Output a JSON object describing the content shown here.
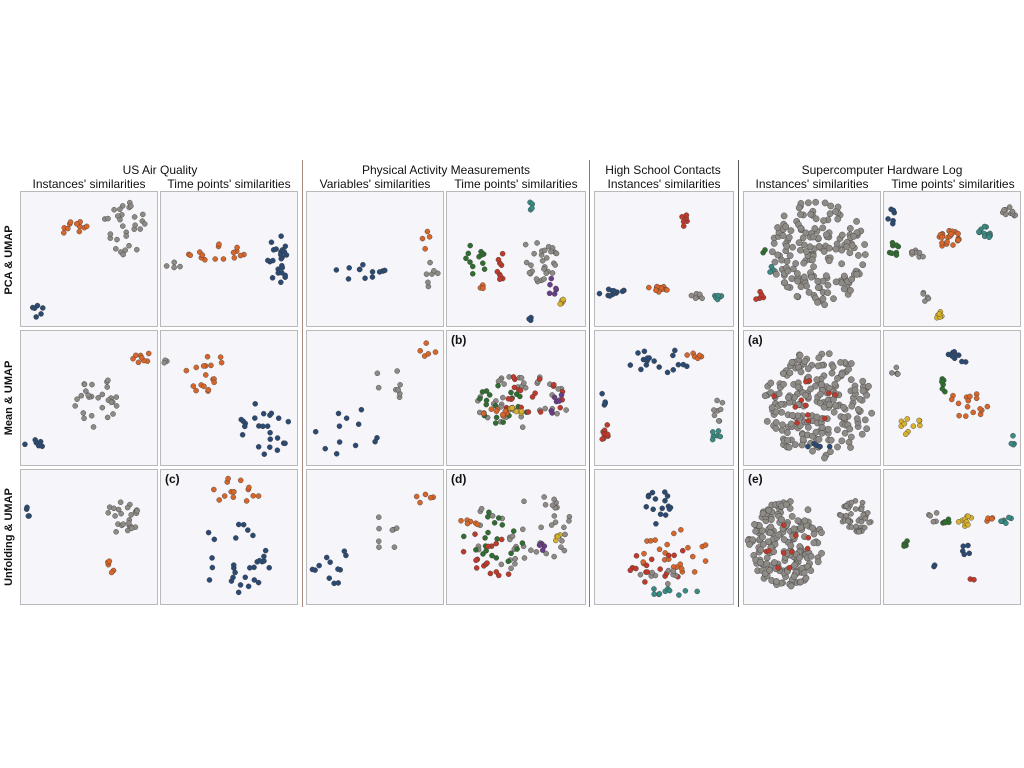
{
  "figure": {
    "row_labels": [
      "PCA & UMAP",
      "Mean & UMAP",
      "Unfolding & UMAP"
    ],
    "groups": [
      {
        "id": "air",
        "title": "US Air Quality",
        "columns": [
          "Instances' similarities",
          "Time points' similarities"
        ]
      },
      {
        "id": "phys",
        "title": "Physical Activity Measurements",
        "columns": [
          "Variables' similarities",
          "Time points' similarities"
        ]
      },
      {
        "id": "school",
        "title": "High School Contacts",
        "columns": [
          "Instances' similarities"
        ]
      },
      {
        "id": "super",
        "title": "Supercomputer Hardware Log",
        "columns": [
          "Instances' similarities",
          "Time points' similarities"
        ]
      }
    ],
    "panel_labels": {
      "r1c3": "(b)",
      "r1c5": "(a)",
      "r2c1": "(c)",
      "r2c3": "(d)",
      "r2c5": "(e)"
    }
  },
  "colors": {
    "blue": "#2b4a73",
    "orange": "#d8662a",
    "gray": "#8e8a86",
    "red": "#c0392b",
    "green": "#2f6e2f",
    "teal": "#3a8a84",
    "yellow": "#d8b22a",
    "purple": "#6a3d8a",
    "panel_bg": "#f6f6fa",
    "separator": "#a98a7e"
  },
  "chart_data": {
    "type": "scatter",
    "description_units": "normalized projection coordinates 0-1 (x right, y down)",
    "panels": [
      {
        "id": "r0c0",
        "clusters": [
          {
            "color": "blue",
            "cx": 0.12,
            "cy": 0.89,
            "rx": 0.05,
            "ry": 0.05,
            "n": 6
          },
          {
            "color": "orange",
            "cx": 0.38,
            "cy": 0.27,
            "rx": 0.14,
            "ry": 0.06,
            "n": 11
          },
          {
            "color": "gray",
            "cx": 0.76,
            "cy": 0.27,
            "rx": 0.17,
            "ry": 0.2,
            "n": 30
          }
        ]
      },
      {
        "id": "r0c1",
        "clusters": [
          {
            "color": "gray",
            "cx": 0.1,
            "cy": 0.55,
            "rx": 0.06,
            "ry": 0.03,
            "n": 4
          },
          {
            "color": "orange",
            "cx": 0.38,
            "cy": 0.45,
            "rx": 0.24,
            "ry": 0.07,
            "n": 16
          },
          {
            "color": "blue",
            "cx": 0.87,
            "cy": 0.48,
            "rx": 0.09,
            "ry": 0.2,
            "n": 24
          }
        ]
      },
      {
        "id": "r0c2",
        "clusters": [
          {
            "color": "blue",
            "cx": 0.35,
            "cy": 0.59,
            "rx": 0.28,
            "ry": 0.06,
            "n": 12
          },
          {
            "color": "orange",
            "cx": 0.88,
            "cy": 0.35,
            "rx": 0.04,
            "ry": 0.08,
            "n": 4
          },
          {
            "color": "gray",
            "cx": 0.92,
            "cy": 0.6,
            "rx": 0.05,
            "ry": 0.14,
            "n": 7
          }
        ]
      },
      {
        "id": "r0c3",
        "clusters": [
          {
            "color": "green",
            "cx": 0.2,
            "cy": 0.5,
            "rx": 0.09,
            "ry": 0.15,
            "n": 12
          },
          {
            "color": "red",
            "cx": 0.4,
            "cy": 0.55,
            "rx": 0.04,
            "ry": 0.12,
            "n": 9
          },
          {
            "color": "gray",
            "cx": 0.67,
            "cy": 0.5,
            "rx": 0.13,
            "ry": 0.17,
            "n": 30
          },
          {
            "color": "purple",
            "cx": 0.77,
            "cy": 0.7,
            "rx": 0.04,
            "ry": 0.08,
            "n": 6
          },
          {
            "color": "yellow",
            "cx": 0.82,
            "cy": 0.83,
            "rx": 0.03,
            "ry": 0.04,
            "n": 5
          },
          {
            "color": "teal",
            "cx": 0.62,
            "cy": 0.1,
            "rx": 0.02,
            "ry": 0.05,
            "n": 4
          },
          {
            "color": "orange",
            "cx": 0.25,
            "cy": 0.72,
            "rx": 0.03,
            "ry": 0.04,
            "n": 4
          },
          {
            "color": "blue",
            "cx": 0.61,
            "cy": 0.93,
            "rx": 0.02,
            "ry": 0.03,
            "n": 3
          }
        ]
      },
      {
        "id": "r0c4",
        "clusters": [
          {
            "color": "blue",
            "cx": 0.15,
            "cy": 0.75,
            "rx": 0.13,
            "ry": 0.03,
            "n": 12
          },
          {
            "color": "orange",
            "cx": 0.46,
            "cy": 0.72,
            "rx": 0.08,
            "ry": 0.03,
            "n": 12
          },
          {
            "color": "gray",
            "cx": 0.72,
            "cy": 0.78,
            "rx": 0.07,
            "ry": 0.03,
            "n": 8
          },
          {
            "color": "teal",
            "cx": 0.9,
            "cy": 0.78,
            "rx": 0.05,
            "ry": 0.03,
            "n": 6
          },
          {
            "color": "red",
            "cx": 0.65,
            "cy": 0.2,
            "rx": 0.02,
            "ry": 0.07,
            "n": 6
          }
        ]
      },
      {
        "id": "r0c5",
        "clusters": [
          {
            "color": "gray",
            "cx": 0.55,
            "cy": 0.45,
            "rx": 0.35,
            "ry": 0.4,
            "n": 180
          },
          {
            "color": "green",
            "cx": 0.15,
            "cy": 0.45,
            "rx": 0.02,
            "ry": 0.02,
            "n": 2
          },
          {
            "color": "teal",
            "cx": 0.2,
            "cy": 0.58,
            "rx": 0.03,
            "ry": 0.03,
            "n": 3
          },
          {
            "color": "red",
            "cx": 0.12,
            "cy": 0.78,
            "rx": 0.05,
            "ry": 0.04,
            "n": 5
          }
        ]
      },
      {
        "id": "r0c6",
        "clusters": [
          {
            "color": "blue",
            "cx": 0.06,
            "cy": 0.18,
            "rx": 0.04,
            "ry": 0.06,
            "n": 6
          },
          {
            "color": "green",
            "cx": 0.08,
            "cy": 0.42,
            "rx": 0.05,
            "ry": 0.06,
            "n": 8
          },
          {
            "color": "gray",
            "cx": 0.25,
            "cy": 0.45,
            "rx": 0.05,
            "ry": 0.05,
            "n": 8
          },
          {
            "color": "orange",
            "cx": 0.47,
            "cy": 0.35,
            "rx": 0.09,
            "ry": 0.07,
            "n": 25
          },
          {
            "color": "teal",
            "cx": 0.75,
            "cy": 0.3,
            "rx": 0.07,
            "ry": 0.05,
            "n": 12
          },
          {
            "color": "gray",
            "cx": 0.3,
            "cy": 0.78,
            "rx": 0.03,
            "ry": 0.04,
            "n": 5
          },
          {
            "color": "yellow",
            "cx": 0.4,
            "cy": 0.92,
            "rx": 0.03,
            "ry": 0.03,
            "n": 6
          },
          {
            "color": "gray",
            "cx": 0.92,
            "cy": 0.15,
            "rx": 0.05,
            "ry": 0.06,
            "n": 10
          }
        ]
      },
      {
        "id": "r1c0",
        "clusters": [
          {
            "color": "blue",
            "cx": 0.1,
            "cy": 0.84,
            "rx": 0.08,
            "ry": 0.03,
            "n": 6
          },
          {
            "color": "gray",
            "cx": 0.55,
            "cy": 0.5,
            "rx": 0.18,
            "ry": 0.22,
            "n": 28
          },
          {
            "color": "orange",
            "cx": 0.9,
            "cy": 0.21,
            "rx": 0.08,
            "ry": 0.05,
            "n": 8
          }
        ]
      },
      {
        "id": "r1c1",
        "clusters": [
          {
            "color": "gray",
            "cx": 0.05,
            "cy": 0.24,
            "rx": 0.03,
            "ry": 0.03,
            "n": 3
          },
          {
            "color": "orange",
            "cx": 0.35,
            "cy": 0.32,
            "rx": 0.18,
            "ry": 0.15,
            "n": 18
          },
          {
            "color": "blue",
            "cx": 0.78,
            "cy": 0.72,
            "rx": 0.2,
            "ry": 0.2,
            "n": 24
          }
        ]
      },
      {
        "id": "r1c2",
        "clusters": [
          {
            "color": "blue",
            "cx": 0.3,
            "cy": 0.75,
            "rx": 0.26,
            "ry": 0.18,
            "n": 12
          },
          {
            "color": "gray",
            "cx": 0.62,
            "cy": 0.42,
            "rx": 0.14,
            "ry": 0.2,
            "n": 8
          },
          {
            "color": "orange",
            "cx": 0.88,
            "cy": 0.14,
            "rx": 0.07,
            "ry": 0.06,
            "n": 5
          }
        ]
      },
      {
        "id": "r1c3",
        "clusters": [
          {
            "color": "gray",
            "cx": 0.55,
            "cy": 0.52,
            "rx": 0.35,
            "ry": 0.2,
            "n": 40
          },
          {
            "color": "green",
            "cx": 0.4,
            "cy": 0.55,
            "rx": 0.2,
            "ry": 0.15,
            "n": 20
          },
          {
            "color": "red",
            "cx": 0.6,
            "cy": 0.5,
            "rx": 0.25,
            "ry": 0.18,
            "n": 20
          },
          {
            "color": "orange",
            "cx": 0.35,
            "cy": 0.62,
            "rx": 0.1,
            "ry": 0.05,
            "n": 8
          },
          {
            "color": "purple",
            "cx": 0.8,
            "cy": 0.55,
            "rx": 0.05,
            "ry": 0.1,
            "n": 6
          },
          {
            "color": "yellow",
            "cx": 0.5,
            "cy": 0.6,
            "rx": 0.05,
            "ry": 0.04,
            "n": 5
          }
        ]
      },
      {
        "id": "r1c4",
        "clusters": [
          {
            "color": "blue",
            "cx": 0.45,
            "cy": 0.22,
            "rx": 0.25,
            "ry": 0.1,
            "n": 18
          },
          {
            "color": "orange",
            "cx": 0.72,
            "cy": 0.18,
            "rx": 0.06,
            "ry": 0.04,
            "n": 6
          },
          {
            "color": "blue",
            "cx": 0.06,
            "cy": 0.5,
            "rx": 0.03,
            "ry": 0.06,
            "n": 4
          },
          {
            "color": "red",
            "cx": 0.08,
            "cy": 0.75,
            "rx": 0.05,
            "ry": 0.07,
            "n": 10
          },
          {
            "color": "gray",
            "cx": 0.9,
            "cy": 0.6,
            "rx": 0.04,
            "ry": 0.1,
            "n": 8
          },
          {
            "color": "teal",
            "cx": 0.88,
            "cy": 0.78,
            "rx": 0.04,
            "ry": 0.06,
            "n": 6
          }
        ]
      },
      {
        "id": "r1c5",
        "clusters": [
          {
            "color": "gray",
            "cx": 0.55,
            "cy": 0.55,
            "rx": 0.4,
            "ry": 0.4,
            "n": 220
          },
          {
            "color": "red",
            "cx": 0.45,
            "cy": 0.55,
            "rx": 0.25,
            "ry": 0.2,
            "n": 12
          },
          {
            "color": "blue",
            "cx": 0.55,
            "cy": 0.85,
            "rx": 0.1,
            "ry": 0.05,
            "n": 5
          }
        ]
      },
      {
        "id": "r1c6",
        "clusters": [
          {
            "color": "blue",
            "cx": 0.55,
            "cy": 0.2,
            "rx": 0.1,
            "ry": 0.07,
            "n": 10
          },
          {
            "color": "orange",
            "cx": 0.6,
            "cy": 0.55,
            "rx": 0.17,
            "ry": 0.1,
            "n": 16
          },
          {
            "color": "yellow",
            "cx": 0.2,
            "cy": 0.7,
            "rx": 0.1,
            "ry": 0.08,
            "n": 10
          },
          {
            "color": "green",
            "cx": 0.45,
            "cy": 0.4,
            "rx": 0.04,
            "ry": 0.06,
            "n": 6
          },
          {
            "color": "gray",
            "cx": 0.08,
            "cy": 0.3,
            "rx": 0.04,
            "ry": 0.05,
            "n": 5
          },
          {
            "color": "teal",
            "cx": 0.95,
            "cy": 0.8,
            "rx": 0.03,
            "ry": 0.05,
            "n": 4
          }
        ]
      },
      {
        "id": "r2c0",
        "clusters": [
          {
            "color": "blue",
            "cx": 0.05,
            "cy": 0.3,
            "rx": 0.03,
            "ry": 0.05,
            "n": 4
          },
          {
            "color": "gray",
            "cx": 0.75,
            "cy": 0.35,
            "rx": 0.14,
            "ry": 0.12,
            "n": 25
          },
          {
            "color": "orange",
            "cx": 0.65,
            "cy": 0.72,
            "rx": 0.04,
            "ry": 0.05,
            "n": 5
          }
        ]
      },
      {
        "id": "r2c1",
        "clusters": [
          {
            "color": "orange",
            "cx": 0.55,
            "cy": 0.15,
            "rx": 0.2,
            "ry": 0.1,
            "n": 14
          },
          {
            "color": "blue",
            "cx": 0.55,
            "cy": 0.65,
            "rx": 0.28,
            "ry": 0.27,
            "n": 30
          }
        ]
      },
      {
        "id": "r2c2",
        "clusters": [
          {
            "color": "blue",
            "cx": 0.25,
            "cy": 0.7,
            "rx": 0.22,
            "ry": 0.15,
            "n": 12
          },
          {
            "color": "gray",
            "cx": 0.6,
            "cy": 0.45,
            "rx": 0.15,
            "ry": 0.15,
            "n": 8
          },
          {
            "color": "orange",
            "cx": 0.88,
            "cy": 0.22,
            "rx": 0.08,
            "ry": 0.06,
            "n": 5
          }
        ]
      },
      {
        "id": "r2c3",
        "clusters": [
          {
            "color": "gray",
            "cx": 0.55,
            "cy": 0.45,
            "rx": 0.38,
            "ry": 0.3,
            "n": 45
          },
          {
            "color": "green",
            "cx": 0.35,
            "cy": 0.5,
            "rx": 0.25,
            "ry": 0.2,
            "n": 20
          },
          {
            "color": "red",
            "cx": 0.3,
            "cy": 0.65,
            "rx": 0.2,
            "ry": 0.2,
            "n": 16
          },
          {
            "color": "yellow",
            "cx": 0.8,
            "cy": 0.5,
            "rx": 0.03,
            "ry": 0.04,
            "n": 4
          },
          {
            "color": "purple",
            "cx": 0.7,
            "cy": 0.55,
            "rx": 0.04,
            "ry": 0.05,
            "n": 5
          },
          {
            "color": "orange",
            "cx": 0.15,
            "cy": 0.4,
            "rx": 0.08,
            "ry": 0.03,
            "n": 6
          }
        ]
      },
      {
        "id": "r2c4",
        "clusters": [
          {
            "color": "blue",
            "cx": 0.45,
            "cy": 0.25,
            "rx": 0.1,
            "ry": 0.2,
            "n": 16
          },
          {
            "color": "orange",
            "cx": 0.55,
            "cy": 0.62,
            "rx": 0.28,
            "ry": 0.18,
            "n": 24
          },
          {
            "color": "red",
            "cx": 0.5,
            "cy": 0.72,
            "rx": 0.25,
            "ry": 0.15,
            "n": 16
          },
          {
            "color": "gray",
            "cx": 0.45,
            "cy": 0.8,
            "rx": 0.15,
            "ry": 0.1,
            "n": 10
          },
          {
            "color": "teal",
            "cx": 0.55,
            "cy": 0.9,
            "rx": 0.2,
            "ry": 0.05,
            "n": 10
          }
        ]
      },
      {
        "id": "r2c5",
        "clusters": [
          {
            "color": "gray",
            "cx": 0.3,
            "cy": 0.55,
            "rx": 0.28,
            "ry": 0.32,
            "n": 200
          },
          {
            "color": "gray",
            "cx": 0.82,
            "cy": 0.35,
            "rx": 0.12,
            "ry": 0.12,
            "n": 50
          },
          {
            "color": "red",
            "cx": 0.3,
            "cy": 0.6,
            "rx": 0.2,
            "ry": 0.2,
            "n": 10
          }
        ]
      },
      {
        "id": "r2c6",
        "clusters": [
          {
            "color": "gray",
            "cx": 0.35,
            "cy": 0.35,
            "rx": 0.05,
            "ry": 0.05,
            "n": 5
          },
          {
            "color": "green",
            "cx": 0.45,
            "cy": 0.38,
            "rx": 0.03,
            "ry": 0.04,
            "n": 5
          },
          {
            "color": "yellow",
            "cx": 0.6,
            "cy": 0.37,
            "rx": 0.08,
            "ry": 0.05,
            "n": 10
          },
          {
            "color": "orange",
            "cx": 0.78,
            "cy": 0.37,
            "rx": 0.03,
            "ry": 0.03,
            "n": 4
          },
          {
            "color": "teal",
            "cx": 0.9,
            "cy": 0.37,
            "rx": 0.06,
            "ry": 0.03,
            "n": 6
          },
          {
            "color": "blue",
            "cx": 0.6,
            "cy": 0.6,
            "rx": 0.03,
            "ry": 0.06,
            "n": 5
          },
          {
            "color": "green",
            "cx": 0.15,
            "cy": 0.55,
            "rx": 0.04,
            "ry": 0.03,
            "n": 4
          },
          {
            "color": "blue",
            "cx": 0.38,
            "cy": 0.72,
            "rx": 0.02,
            "ry": 0.02,
            "n": 2
          },
          {
            "color": "red",
            "cx": 0.65,
            "cy": 0.82,
            "rx": 0.02,
            "ry": 0.02,
            "n": 2
          }
        ]
      }
    ]
  }
}
